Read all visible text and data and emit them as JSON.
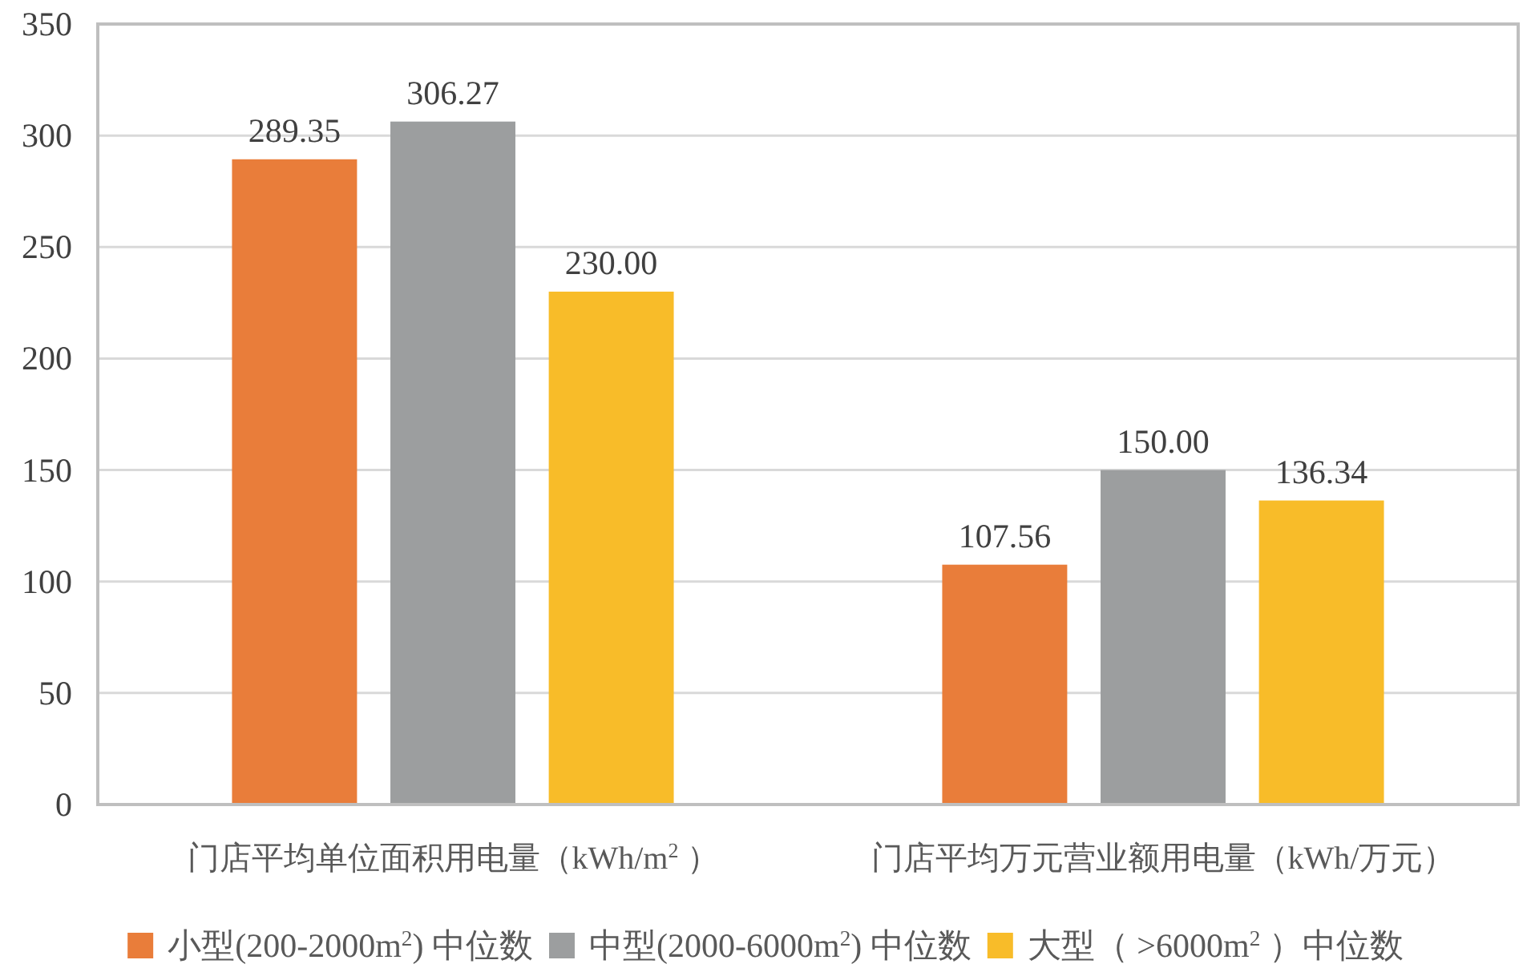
{
  "chart_data": {
    "type": "bar",
    "categories": [
      "门店平均单位面积用电量（kWh/m$^{2}$ ）",
      "门店平均万元营业额用电量（kWh/万元）"
    ],
    "series": [
      {
        "name": "小型(200-2000m$^{2}$) 中位数",
        "color": "#e97d3a",
        "values": [
          289.35,
          107.56
        ],
        "value_labels": [
          "289.35",
          "107.56"
        ]
      },
      {
        "name": "中型(2000-6000m$^{2}$) 中位数",
        "color": "#9c9e9f",
        "values": [
          306.27,
          150.0
        ],
        "value_labels": [
          "306.27",
          "150.00"
        ]
      },
      {
        "name": "大型（ >6000m$^{2}$ ）中位数",
        "color": "#f8bc29",
        "values": [
          230.0,
          136.34
        ],
        "value_labels": [
          "230.00",
          "136.34"
        ]
      }
    ],
    "ylim": [
      0,
      350
    ],
    "yticks": [
      0,
      50,
      100,
      150,
      200,
      250,
      300,
      350
    ],
    "grid": "y",
    "legend": "bottom"
  }
}
